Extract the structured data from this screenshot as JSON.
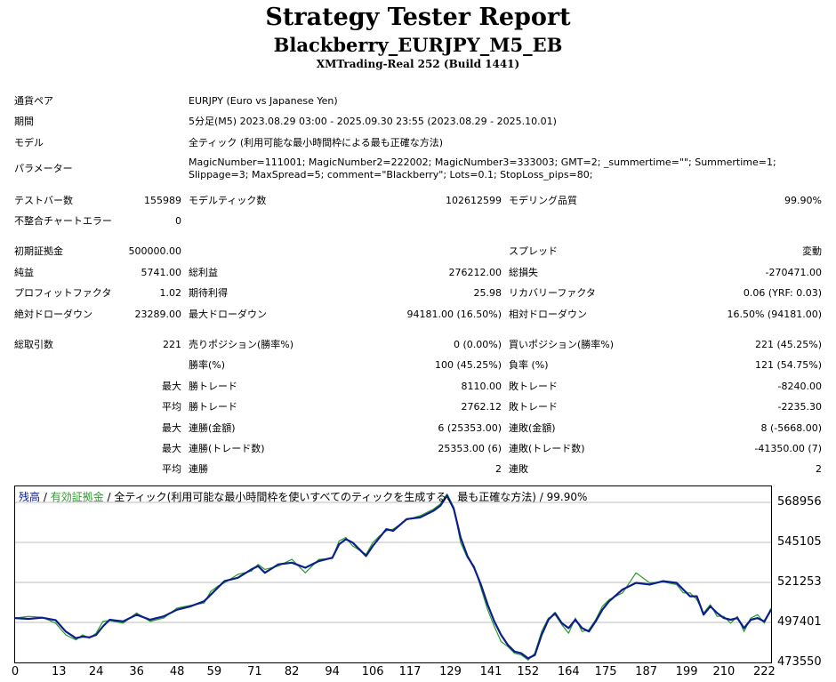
{
  "header": {
    "title": "Strategy Tester Report",
    "ea_name": "Blackberry_EURJPY_M5_EB",
    "account": "XMTrading-Real 252 (Build 1441)"
  },
  "info": [
    {
      "label": "通貨ペア",
      "value": "EURJPY (Euro vs Japanese Yen)"
    },
    {
      "label": "期間",
      "value": "5分足(M5) 2023.08.29 03:00 - 2025.09.30 23:55 (2023.08.29 - 2025.10.01)"
    },
    {
      "label": "モデル",
      "value": "全ティック (利用可能な最小時間枠による最も正確な方法)"
    },
    {
      "label": "パラメーター",
      "value": "MagicNumber=111001; MagicNumber2=222002; MagicNumber3=333003; GMT=2; _summertime=\"\"; Summertime=1; Slippage=3; MaxSpread=5; comment=\"Blackberry\"; Lots=0.1; StopLoss_pips=80;"
    }
  ],
  "stats": {
    "test_bars_label": "テストバー数",
    "test_bars": "155989",
    "model_ticks_label": "モデルティック数",
    "model_ticks": "102612599",
    "model_quality_label": "モデリング品質",
    "model_quality": "99.90%",
    "mismatch_label": "不整合チャートエラー",
    "mismatch": "0",
    "initial_deposit_label": "初期証拠金",
    "initial_deposit": "500000.00",
    "spread_label": "スプレッド",
    "spread": "変動",
    "net_profit_label": "純益",
    "net_profit": "5741.00",
    "gross_profit_label": "総利益",
    "gross_profit": "276212.00",
    "gross_loss_label": "総損失",
    "gross_loss": "-270471.00",
    "profit_factor_label": "プロフィットファクタ",
    "profit_factor": "1.02",
    "expected_payoff_label": "期待利得",
    "expected_payoff": "25.98",
    "recovery_factor_label": "リカバリーファクタ",
    "recovery_factor": "0.06 (YRF: 0.03)",
    "abs_dd_label": "絶対ドローダウン",
    "abs_dd": "23289.00",
    "max_dd_label": "最大ドローダウン",
    "max_dd": "94181.00 (16.50%)",
    "rel_dd_label": "相対ドローダウン",
    "rel_dd": "16.50% (94181.00)",
    "total_trades_label": "総取引数",
    "total_trades": "221",
    "short_label": "売りポジション(勝率%)",
    "short": "0 (0.00%)",
    "long_label": "買いポジション(勝率%)",
    "long": "221 (45.25%)",
    "win_rate_label": "勝率(%)",
    "win_rate": "100 (45.25%)",
    "loss_rate_label": "負率 (%)",
    "loss_rate": "121 (54.75%)",
    "max_label": "最大",
    "avg_label": "平均",
    "largest_win_label": "勝トレード",
    "largest_win": "8110.00",
    "largest_loss_label": "敗トレード",
    "largest_loss": "-8240.00",
    "avg_win_label": "勝トレード",
    "avg_win": "2762.12",
    "avg_loss_label": "敗トレード",
    "avg_loss": "-2235.30",
    "max_consec_wins_label": "連勝(金額)",
    "max_consec_wins": "6 (25353.00)",
    "max_consec_losses_label": "連敗(金額)",
    "max_consec_losses": "8 (-5668.00)",
    "max_consec_profit_label": "連勝(トレード数)",
    "max_consec_profit": "25353.00 (6)",
    "max_consec_loss_label": "連敗(トレード数)",
    "max_consec_loss": "-41350.00 (7)",
    "avg_consec_wins_label": "連勝",
    "avg_consec_wins": "2",
    "avg_consec_losses_label": "連敗",
    "avg_consec_losses": "2"
  },
  "chart_caption": {
    "balance": "残高",
    "sep1": " / ",
    "equity": "有効証拠金",
    "rest": " / 全ティック(利用可能な最小時間枠を使いすべてのティックを生成する、最も正確な方法) / 99.90%"
  },
  "chart_data": {
    "type": "line",
    "colors": {
      "balance": "#0a1e8c",
      "equity": "#2a9a2a",
      "grid": "#bdbdbd"
    },
    "xlim": [
      0,
      224
    ],
    "ylim": [
      473550,
      580000
    ],
    "x_ticks": [
      "0",
      "13",
      "24",
      "36",
      "48",
      "59",
      "71",
      "82",
      "94",
      "106",
      "117",
      "129",
      "141",
      "152",
      "164",
      "175",
      "187",
      "199",
      "210",
      "222"
    ],
    "y_ticks": [
      "568956",
      "545105",
      "521253",
      "497401",
      "473550"
    ],
    "series": [
      {
        "name": "残高",
        "key": "balance",
        "x": [
          0,
          4,
          8,
          12,
          15,
          18,
          20,
          22,
          24,
          26,
          28,
          32,
          36,
          40,
          44,
          48,
          52,
          56,
          58,
          60,
          62,
          66,
          70,
          72,
          74,
          78,
          82,
          86,
          90,
          94,
          96,
          98,
          100,
          104,
          106,
          108,
          110,
          112,
          116,
          120,
          124,
          126,
          128,
          130,
          132,
          134,
          136,
          138,
          140,
          142,
          144,
          146,
          148,
          150,
          152,
          154,
          156,
          158,
          160,
          162,
          164,
          166,
          168,
          170,
          172,
          174,
          176,
          180,
          184,
          188,
          192,
          196,
          198,
          200,
          202,
          204,
          206,
          208,
          210,
          212,
          214,
          216,
          218,
          220,
          222,
          224
        ],
        "values": [
          500000,
          499500,
          500200,
          498800,
          492000,
          488000,
          489000,
          488500,
          490000,
          495000,
          499000,
          498000,
          502000,
          499000,
          501000,
          505000,
          507000,
          510000,
          514000,
          518000,
          522000,
          524000,
          529000,
          531000,
          527000,
          532000,
          533000,
          530000,
          534000,
          536000,
          544000,
          547000,
          545000,
          537000,
          543000,
          548000,
          553000,
          552000,
          559000,
          560000,
          564000,
          567000,
          573000,
          565000,
          548000,
          537000,
          530000,
          520000,
          508000,
          498000,
          490000,
          484000,
          480000,
          479000,
          476000,
          478000,
          490000,
          499000,
          503000,
          497000,
          494000,
          499000,
          494000,
          492000,
          498000,
          505000,
          510000,
          517000,
          521000,
          520000,
          522000,
          521000,
          517000,
          513000,
          513000,
          502000,
          507000,
          503000,
          500000,
          499000,
          500000,
          494000,
          499000,
          500000,
          498000,
          505000
        ]
      },
      {
        "name": "有効証拠金",
        "key": "equity",
        "x": [
          0,
          4,
          8,
          12,
          15,
          18,
          20,
          22,
          24,
          26,
          28,
          32,
          36,
          40,
          44,
          48,
          52,
          56,
          58,
          60,
          62,
          66,
          70,
          72,
          74,
          78,
          82,
          86,
          90,
          94,
          96,
          98,
          100,
          104,
          106,
          108,
          110,
          112,
          116,
          120,
          124,
          126,
          128,
          130,
          132,
          134,
          136,
          138,
          140,
          142,
          144,
          146,
          148,
          150,
          152,
          154,
          156,
          158,
          160,
          162,
          164,
          166,
          168,
          170,
          172,
          174,
          176,
          180,
          184,
          188,
          192,
          196,
          198,
          200,
          202,
          204,
          206,
          208,
          210,
          212,
          214,
          216,
          218,
          220,
          222,
          224
        ],
        "values": [
          500000,
          501000,
          500500,
          497000,
          490000,
          487000,
          490000,
          488000,
          491000,
          498000,
          498500,
          497000,
          503000,
          498000,
          500000,
          506000,
          507500,
          509000,
          516000,
          519000,
          521000,
          526000,
          528000,
          532000,
          529000,
          531000,
          535000,
          527000,
          535000,
          535500,
          546000,
          548000,
          543000,
          538000,
          545000,
          549000,
          552000,
          553000,
          558500,
          561000,
          565000,
          568000,
          574000,
          566000,
          545000,
          536000,
          531000,
          518000,
          505000,
          495000,
          486000,
          483000,
          479000,
          478000,
          475000,
          479000,
          492000,
          500000,
          502000,
          496000,
          491000,
          500000,
          492000,
          493000,
          499000,
          507000,
          511000,
          515000,
          527000,
          521000,
          521500,
          520000,
          515000,
          515000,
          511000,
          503000,
          508000,
          501000,
          501000,
          497000,
          501000,
          492000,
          500000,
          502000,
          497000,
          506000
        ]
      }
    ]
  }
}
